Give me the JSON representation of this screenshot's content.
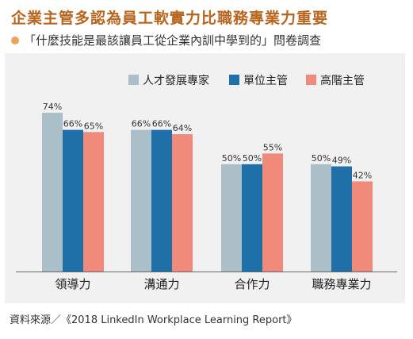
{
  "title": "企業主管多認為員工軟實力比職務專業力重要",
  "subtitle": "「什麼技能是最該讓員工從企業內訓中學到的」問卷調查",
  "source": "資料來源／《2018 LinkedIn Workplace Learning Report》",
  "chart_data": {
    "type": "bar",
    "categories": [
      "領導力",
      "溝通力",
      "合作力",
      "職務專業力"
    ],
    "series": [
      {
        "name": "人才發展專家",
        "values": [
          74,
          66,
          50,
          50
        ],
        "labels": [
          "74%",
          "66%",
          "50%",
          "50%"
        ],
        "color": "#abbfc8"
      },
      {
        "name": "單位主管",
        "values": [
          66,
          66,
          50,
          49
        ],
        "labels": [
          "66%",
          "66%",
          "50%",
          "49%"
        ],
        "color": "#1f6fa8"
      },
      {
        "name": "高階主管",
        "values": [
          65,
          64,
          55,
          42
        ],
        "labels": [
          "65%",
          "64%",
          "55%",
          "42%"
        ],
        "color": "#f08b7c"
      }
    ],
    "ylim": [
      0,
      100
    ],
    "legend": "top-right",
    "grid": false
  }
}
